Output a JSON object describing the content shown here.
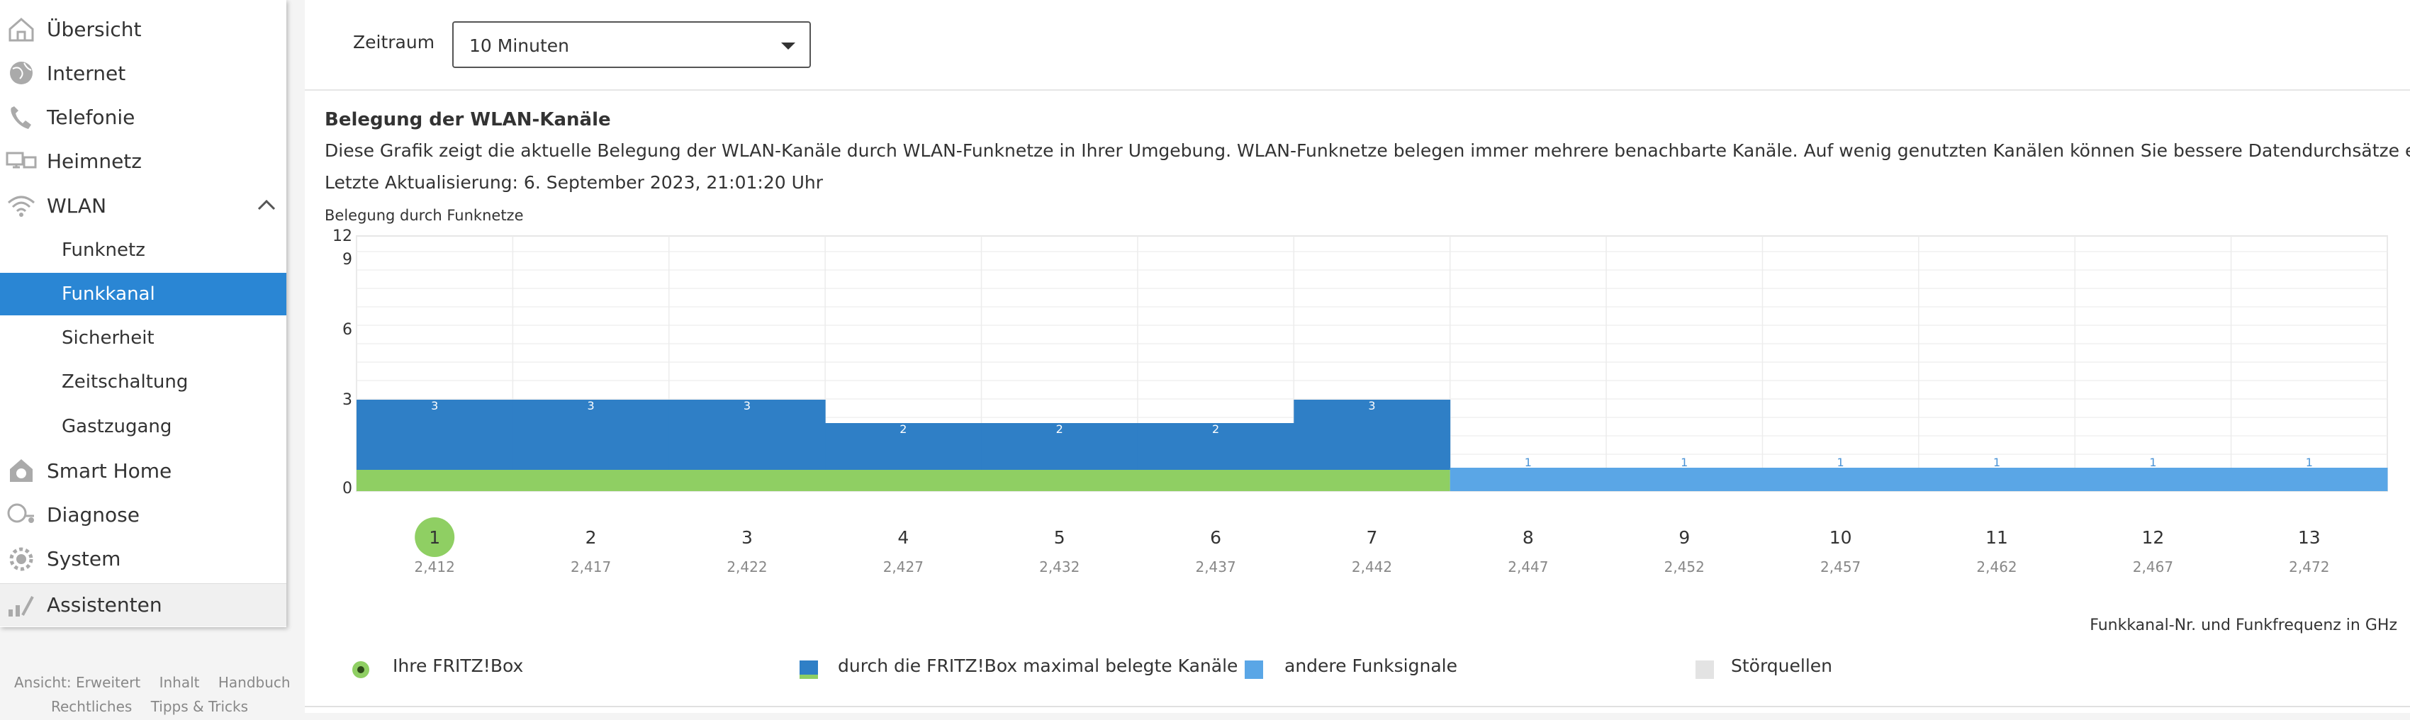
{
  "sidebar": {
    "items": [
      {
        "label": "Übersicht",
        "icon": "home-icon"
      },
      {
        "label": "Internet",
        "icon": "globe-icon"
      },
      {
        "label": "Telefonie",
        "icon": "phone-icon"
      },
      {
        "label": "Heimnetz",
        "icon": "network-icon"
      },
      {
        "label": "WLAN",
        "icon": "wifi-icon"
      }
    ],
    "wlan_subitems": [
      {
        "label": "Funknetz"
      },
      {
        "label": "Funkkanal",
        "active": true
      },
      {
        "label": "Sicherheit"
      },
      {
        "label": "Zeitschaltung"
      },
      {
        "label": "Gastzugang"
      }
    ],
    "items_after": [
      {
        "label": "Smart Home",
        "icon": "smarthome-icon"
      },
      {
        "label": "Diagnose",
        "icon": "diagnose-icon"
      },
      {
        "label": "System",
        "icon": "gear-icon"
      }
    ],
    "assistenten": {
      "label": "Assistenten",
      "icon": "wand-icon"
    },
    "footer": {
      "ansicht": "Ansicht: Erweitert",
      "inhalt": "Inhalt",
      "handbuch": "Handbuch",
      "rechtliches": "Rechtliches",
      "tipps": "Tipps & Tricks"
    }
  },
  "main": {
    "zeitraum_label": "Zeitraum",
    "zeitraum_value": "10 Minuten",
    "section_title": "Belegung der WLAN-Kanäle",
    "description": "Diese Grafik zeigt die aktuelle Belegung der WLAN-Kanäle durch WLAN-Funknetze in Ihrer Umgebung. WLAN-Funknetze belegen immer mehrere benachbarte Kanäle. Auf wenig genutzten Kanälen können Sie bessere Datendurchsätze erreichen.",
    "last_update": "Letzte Aktualisierung: 6. September 2023, 21:01:20 Uhr",
    "chart_title": "Belegung durch Funknetze",
    "xaxis_caption": "Funkkanal-Nr. und Funkfrequenz in GHz",
    "legend": {
      "fritzbox": "Ihre FRITZ!Box",
      "belegt": "durch die FRITZ!Box maximal belegte Kanäle",
      "andere": "andere Funksignale",
      "stoer": "Störquellen"
    }
  },
  "colors": {
    "fritz_green": "#8fcf63",
    "belegt_blue": "#2f7fc6",
    "andere_blue": "#5aa6e6",
    "stoer_gray": "#e3e3e3",
    "active_blue": "#2a86d4"
  },
  "chart_data": {
    "type": "bar",
    "title": "Belegung durch Funknetze",
    "xlabel": "Funkkanal-Nr. und Funkfrequenz in GHz",
    "ylabel": "",
    "ylim": [
      0,
      12
    ],
    "yticks": [
      0,
      3,
      6,
      9,
      12
    ],
    "categories": [
      "1",
      "2",
      "3",
      "4",
      "5",
      "6",
      "7",
      "8",
      "9",
      "10",
      "11",
      "12",
      "13"
    ],
    "frequencies": [
      "2,412",
      "2,417",
      "2,422",
      "2,427",
      "2,432",
      "2,437",
      "2,442",
      "2,447",
      "2,452",
      "2,457",
      "2,462",
      "2,467",
      "2,472"
    ],
    "fritzbox_channel": "1",
    "series": [
      {
        "name": "durch die FRITZ!Box maximal belegte Kanäle",
        "values": [
          3,
          3,
          3,
          2,
          2,
          2,
          3,
          null,
          null,
          null,
          null,
          null,
          null
        ]
      },
      {
        "name": "andere Funksignale",
        "values": [
          null,
          null,
          null,
          null,
          null,
          null,
          null,
          1,
          1,
          1,
          1,
          1,
          1
        ]
      }
    ]
  }
}
